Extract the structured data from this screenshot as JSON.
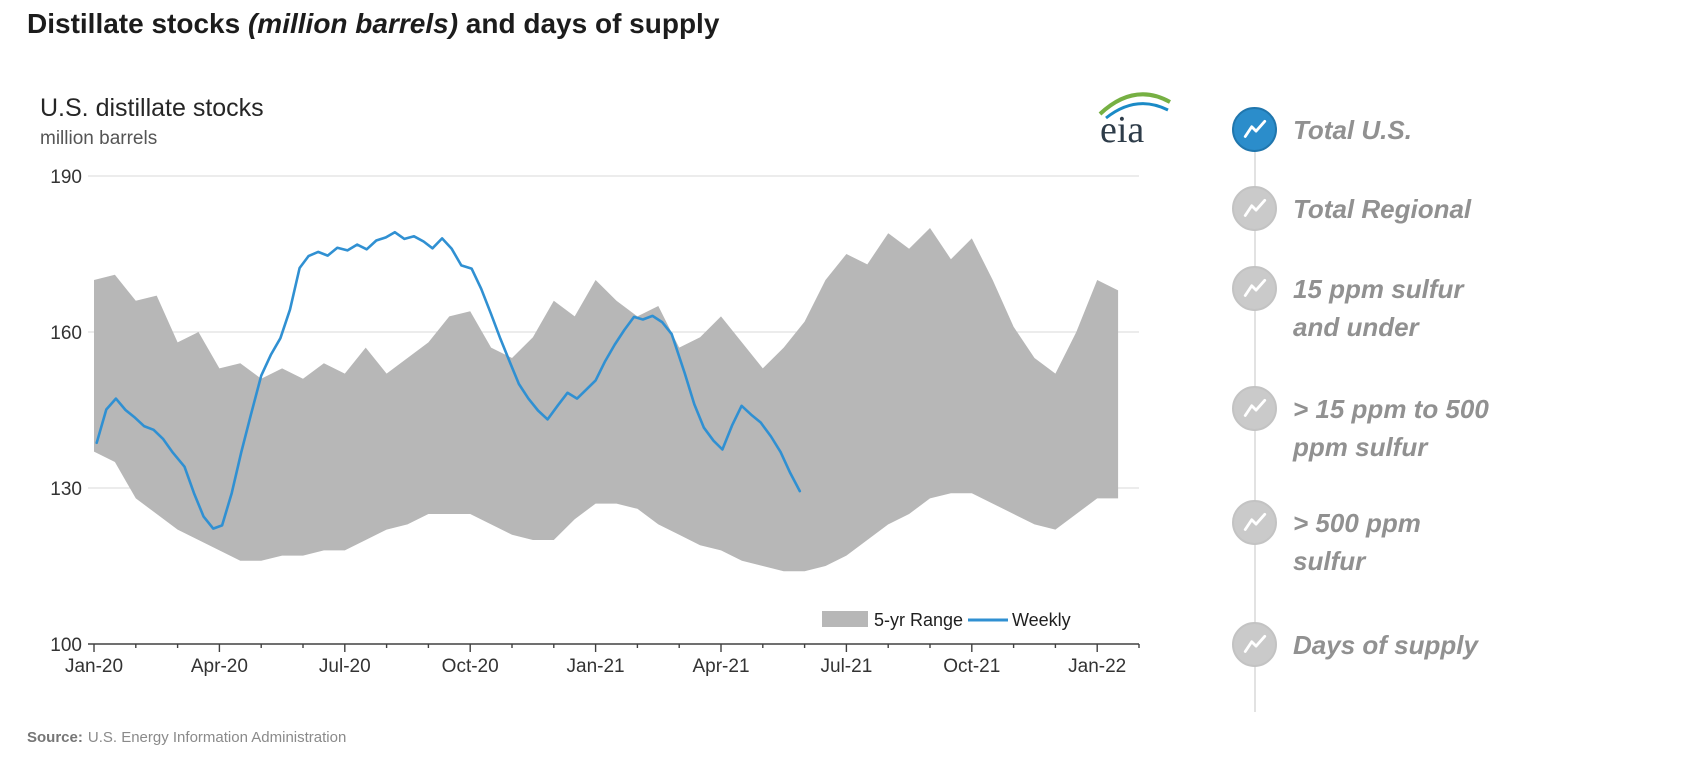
{
  "page": {
    "title_parts": {
      "prefix": "Distillate stocks ",
      "italic": "(million barrels)",
      "suffix": " and days of supply"
    },
    "source_label": "Source:",
    "source_text": "U.S. Energy Information Administration"
  },
  "chart": {
    "title": "U.S. distillate stocks",
    "subtitle": "million barrels",
    "logo_text": "eia"
  },
  "sidebar": {
    "items": [
      {
        "label": "Total U.S.",
        "selected": true
      },
      {
        "label": "Total Regional",
        "selected": false
      },
      {
        "label": "15 ppm sulfur\nand under",
        "selected": false
      },
      {
        "label": "> 15 ppm to 500\nppm sulfur",
        "selected": false
      },
      {
        "label": "> 500 ppm\nsulfur",
        "selected": false
      },
      {
        "label": "Days of supply",
        "selected": false
      }
    ]
  },
  "colors": {
    "accent_blue": "#2b8dcb",
    "weekly_line": "#3090d2",
    "band_gray": "#b7b7b7",
    "sidebar_gray": "#cacaca",
    "label_gray": "#919191",
    "logo_green": "#76b043",
    "logo_blue": "#1a8ac6",
    "grid_gray": "#d9d9d9",
    "axis_dark": "#404040"
  },
  "chart_data": {
    "type": "line",
    "title": "U.S. distillate stocks",
    "ylabel": "million barrels",
    "ylim": [
      100,
      190
    ],
    "yticks": [
      100,
      130,
      160,
      190
    ],
    "xticks": [
      "Jan-20",
      "Apr-20",
      "Jul-20",
      "Oct-20",
      "Jan-21",
      "Apr-21",
      "Jul-21",
      "Oct-21",
      "Jan-22"
    ],
    "grid": true,
    "legend": [
      "5-yr Range",
      "Weekly"
    ],
    "legend_position": "inside-bottom-right",
    "band": {
      "name": "5-yr Range",
      "x_months": [
        0,
        0.5,
        1,
        1.5,
        2,
        2.5,
        3,
        3.5,
        4,
        4.5,
        5,
        5.5,
        6,
        6.5,
        7,
        7.5,
        8,
        8.5,
        9,
        9.5,
        10,
        10.5,
        11,
        11.5,
        12,
        12.5,
        13,
        13.5,
        14,
        14.5,
        15,
        15.5,
        16,
        16.5,
        17,
        17.5,
        18,
        18.5,
        19,
        19.5,
        20,
        20.5,
        21,
        21.5,
        22,
        22.5,
        23,
        23.5,
        24,
        24.5
      ],
      "top": [
        170,
        171,
        166,
        167,
        158,
        160,
        153,
        154,
        151,
        153,
        151,
        154,
        152,
        157,
        152,
        155,
        158,
        163,
        164,
        157,
        155,
        159,
        166,
        163,
        170,
        166,
        163,
        165,
        157,
        159,
        163,
        158,
        153,
        157,
        162,
        170,
        175,
        173,
        179,
        176,
        180,
        174,
        178,
        170,
        161,
        155,
        152,
        160,
        170,
        168
      ],
      "bottom": [
        137,
        135,
        128,
        125,
        122,
        120,
        118,
        116,
        116,
        117,
        117,
        118,
        118,
        120,
        122,
        123,
        125,
        125,
        125,
        123,
        121,
        120,
        120,
        124,
        127,
        127,
        126,
        123,
        121,
        119,
        118,
        116,
        115,
        114,
        114,
        115,
        117,
        120,
        123,
        125,
        128,
        129,
        129,
        127,
        125,
        123,
        122,
        125,
        128,
        128
      ]
    },
    "weekly": {
      "name": "Weekly",
      "dates": [
        "2020-01-03",
        "2020-01-10",
        "2020-01-17",
        "2020-01-24",
        "2020-01-31",
        "2020-02-07",
        "2020-02-14",
        "2020-02-21",
        "2020-02-28",
        "2020-03-06",
        "2020-03-13",
        "2020-03-20",
        "2020-03-27",
        "2020-04-03",
        "2020-04-10",
        "2020-04-17",
        "2020-04-24",
        "2020-05-01",
        "2020-05-08",
        "2020-05-15",
        "2020-05-22",
        "2020-05-29",
        "2020-06-05",
        "2020-06-12",
        "2020-06-19",
        "2020-06-26",
        "2020-07-03",
        "2020-07-10",
        "2020-07-17",
        "2020-07-24",
        "2020-07-31",
        "2020-08-07",
        "2020-08-14",
        "2020-08-21",
        "2020-08-28",
        "2020-09-04",
        "2020-09-11",
        "2020-09-18",
        "2020-09-25",
        "2020-10-02",
        "2020-10-09",
        "2020-10-16",
        "2020-10-23",
        "2020-10-30",
        "2020-11-06",
        "2020-11-13",
        "2020-11-20",
        "2020-11-27",
        "2020-12-04",
        "2020-12-11",
        "2020-12-18",
        "2020-12-25",
        "2021-01-01",
        "2021-01-08",
        "2021-01-15",
        "2021-01-22",
        "2021-01-29",
        "2021-02-05",
        "2021-02-12",
        "2021-02-19",
        "2021-02-26",
        "2021-03-05",
        "2021-03-12",
        "2021-03-19",
        "2021-03-26",
        "2021-04-02",
        "2021-04-09",
        "2021-04-16",
        "2021-04-23",
        "2021-04-30",
        "2021-05-07",
        "2021-05-14",
        "2021-05-21",
        "2021-05-28"
      ],
      "values": [
        138.7,
        145.1,
        147.2,
        145.0,
        143.5,
        141.9,
        141.2,
        139.4,
        136.8,
        134.1,
        129.0,
        124.5,
        122.2,
        122.8,
        129.0,
        136.9,
        144.1,
        151.6,
        155.6,
        158.8,
        164.3,
        172.3,
        174.6,
        175.4,
        174.7,
        176.2,
        175.7,
        176.8,
        175.9,
        177.6,
        178.2,
        179.2,
        177.9,
        178.4,
        177.4,
        176.1,
        178.0,
        176.0,
        172.8,
        172.2,
        168.3,
        163.6,
        158.7,
        154.2,
        150.0,
        147.2,
        144.9,
        143.2,
        145.9,
        148.3,
        147.2,
        149.0,
        150.7,
        154.4,
        157.6,
        160.4,
        162.9,
        162.4,
        163.1,
        161.9,
        159.6,
        152.1,
        146.1,
        141.6,
        139.1,
        137.4,
        142.0,
        145.8,
        144.1,
        142.6,
        139.9,
        136.9,
        132.9,
        129.4
      ]
    }
  }
}
